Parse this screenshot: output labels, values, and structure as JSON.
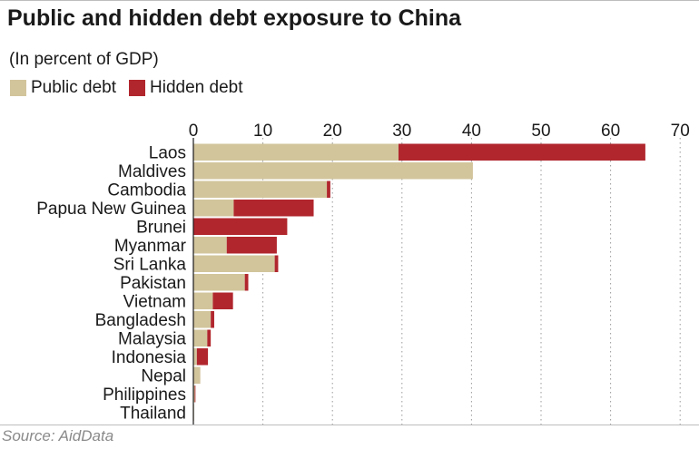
{
  "header": {
    "title": "Public and hidden debt exposure to China",
    "subtitle": "(In percent of GDP)"
  },
  "source": "Source: AidData",
  "colors": {
    "public": "#d2c59c",
    "hidden": "#b1262d"
  },
  "chart_data": {
    "type": "bar",
    "orientation": "horizontal",
    "stacked": true,
    "title": "Public and hidden debt exposure to China",
    "subtitle": "(In percent of GDP)",
    "xlabel": "",
    "ylabel": "",
    "xlim": [
      0,
      70
    ],
    "x_ticks": [
      "0",
      "10",
      "20",
      "30",
      "40",
      "50",
      "60",
      "70"
    ],
    "grid": "vertical dotted",
    "legend_position": "top-left",
    "categories": [
      "Laos",
      "Maldives",
      "Cambodia",
      "Papua New Guinea",
      "Brunei",
      "Myanmar",
      "Sri Lanka",
      "Pakistan",
      "Vietnam",
      "Bangladesh",
      "Malaysia",
      "Indonesia",
      "Nepal",
      "Philippines",
      "Thailand"
    ],
    "series": [
      {
        "name": "Public debt",
        "color": "#d2c59c",
        "values": [
          29.5,
          40.2,
          19.2,
          5.8,
          0,
          4.8,
          11.7,
          7.4,
          2.8,
          2.5,
          2.0,
          0.5,
          1.0,
          0.2,
          0.05
        ]
      },
      {
        "name": "Hidden debt",
        "color": "#b1262d",
        "values": [
          35.5,
          0,
          0.5,
          11.5,
          13.5,
          7.2,
          0.5,
          0.5,
          2.9,
          0.5,
          0.5,
          1.6,
          0,
          0.1,
          0
        ]
      }
    ]
  }
}
